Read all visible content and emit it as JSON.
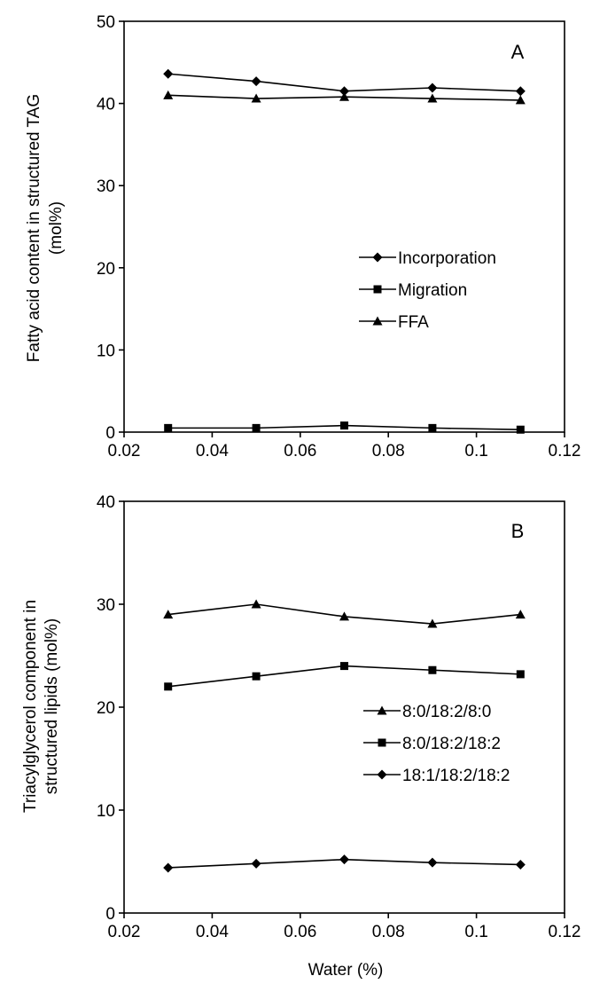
{
  "chart_data": [
    {
      "type": "line",
      "panel_label": "A",
      "ylabel_line1": "Fatty acid content in structured TAG",
      "ylabel_line2": "(mol%)",
      "xlabel": "",
      "xlim": [
        0.02,
        0.12
      ],
      "ylim": [
        0,
        50
      ],
      "xticks": [
        "0.02",
        "0.04",
        "0.06",
        "0.08",
        "0.1",
        "0.12"
      ],
      "yticks": [
        "0",
        "10",
        "20",
        "30",
        "40",
        "50"
      ],
      "grid": false,
      "legend_position": "center-right",
      "x": [
        0.03,
        0.05,
        0.07,
        0.09,
        0.11
      ],
      "series": [
        {
          "name": "Incorporation",
          "marker": "diamond",
          "values": [
            43.6,
            42.7,
            41.5,
            41.9,
            41.5
          ]
        },
        {
          "name": "Migration",
          "marker": "square",
          "values": [
            0.5,
            0.5,
            0.8,
            0.5,
            0.3
          ]
        },
        {
          "name": "FFA",
          "marker": "triangle",
          "values": [
            41.0,
            40.6,
            40.8,
            40.6,
            40.4
          ]
        }
      ]
    },
    {
      "type": "line",
      "panel_label": "B",
      "ylabel_line1": "Triacylglycerol component in",
      "ylabel_line2": "structured lipids (mol%)",
      "xlabel": "Water (%)",
      "xlim": [
        0.02,
        0.12
      ],
      "ylim": [
        0,
        40
      ],
      "xticks": [
        "0.02",
        "0.04",
        "0.06",
        "0.08",
        "0.1",
        "0.12"
      ],
      "yticks": [
        "0",
        "10",
        "20",
        "30",
        "40"
      ],
      "grid": false,
      "legend_position": "lower-right",
      "x": [
        0.03,
        0.05,
        0.07,
        0.09,
        0.11
      ],
      "series": [
        {
          "name": "8:0/18:2/8:0",
          "marker": "triangle",
          "values": [
            29.0,
            30.0,
            28.8,
            28.1,
            29.0
          ]
        },
        {
          "name": "8:0/18:2/18:2",
          "marker": "square",
          "values": [
            22.0,
            23.0,
            24.0,
            23.6,
            23.2
          ]
        },
        {
          "name": "18:1/18:2/18:2",
          "marker": "diamond",
          "values": [
            4.4,
            4.8,
            5.2,
            4.9,
            4.7
          ]
        }
      ]
    }
  ]
}
